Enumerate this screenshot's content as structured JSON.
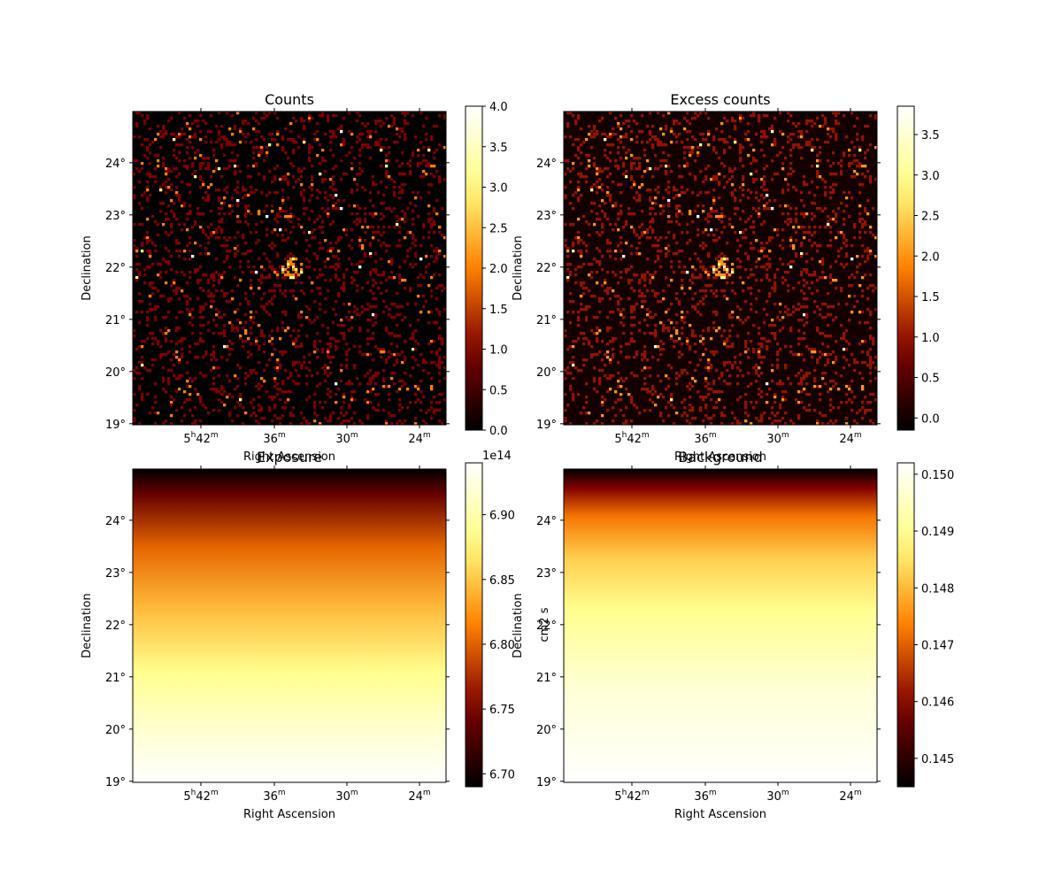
{
  "chart_data": [
    {
      "type": "heatmap",
      "title": "Counts",
      "xlabel": "Right Ascension",
      "ylabel": "Declination",
      "x_tick_labels": [
        "5h42m",
        "36m",
        "30m",
        "24m"
      ],
      "y_tick_labels": [
        "19°",
        "20°",
        "21°",
        "22°",
        "23°",
        "24°"
      ],
      "y_ticks": [
        19,
        20,
        21,
        22,
        23,
        24
      ],
      "ylim": [
        18.98,
        24.98
      ],
      "pattern": "sparse-counts",
      "source_center": {
        "ra_label_position": "36m",
        "dec": 22.0
      },
      "colorbar": {
        "min": 0.0,
        "max": 4.0,
        "ticks": [
          0.0,
          0.5,
          1.0,
          1.5,
          2.0,
          2.5,
          3.0,
          3.5,
          4.0
        ],
        "tick_labels": [
          "0.0",
          "0.5",
          "1.0",
          "1.5",
          "2.0",
          "2.5",
          "3.0",
          "3.5",
          "4.0"
        ],
        "label": "",
        "offset_text": ""
      }
    },
    {
      "type": "heatmap",
      "title": "Excess counts",
      "xlabel": "Right Ascension",
      "ylabel": "Declination",
      "x_tick_labels": [
        "5h42m",
        "36m",
        "30m",
        "24m"
      ],
      "y_tick_labels": [
        "19°",
        "20°",
        "21°",
        "22°",
        "23°",
        "24°"
      ],
      "y_ticks": [
        19,
        20,
        21,
        22,
        23,
        24
      ],
      "ylim": [
        18.98,
        24.98
      ],
      "pattern": "sparse-counts",
      "colorbar": {
        "min": -0.15,
        "max": 3.85,
        "ticks": [
          0.0,
          0.5,
          1.0,
          1.5,
          2.0,
          2.5,
          3.0,
          3.5
        ],
        "tick_labels": [
          "0.0",
          "0.5",
          "1.0",
          "1.5",
          "2.0",
          "2.5",
          "3.0",
          "3.5"
        ],
        "label": "",
        "offset_text": ""
      }
    },
    {
      "type": "heatmap",
      "title": "Exposure",
      "xlabel": "Right Ascension",
      "ylabel": "Declination",
      "x_tick_labels": [
        "5h42m",
        "36m",
        "30m",
        "24m"
      ],
      "y_tick_labels": [
        "19°",
        "20°",
        "21°",
        "22°",
        "23°",
        "24°"
      ],
      "y_ticks": [
        19,
        20,
        21,
        22,
        23,
        24
      ],
      "ylim": [
        18.98,
        24.98
      ],
      "pattern": "vertical-gradient",
      "colorbar": {
        "min": 6.69,
        "max": 6.94,
        "ticks": [
          6.7,
          6.75,
          6.8,
          6.85,
          6.9
        ],
        "tick_labels": [
          "6.70",
          "6.75",
          "6.80",
          "6.85",
          "6.90"
        ],
        "label": "cm2 s",
        "offset_text": "1e14"
      }
    },
    {
      "type": "heatmap",
      "title": "Background",
      "xlabel": "Right Ascension",
      "ylabel": "Declination",
      "x_tick_labels": [
        "5h42m",
        "36m",
        "30m",
        "24m"
      ],
      "y_tick_labels": [
        "19°",
        "20°",
        "21°",
        "22°",
        "23°",
        "24°"
      ],
      "y_ticks": [
        19,
        20,
        21,
        22,
        23,
        24
      ],
      "ylim": [
        18.98,
        24.98
      ],
      "pattern": "vertical-gradient",
      "colorbar": {
        "min": 0.1445,
        "max": 0.1502,
        "ticks": [
          0.145,
          0.146,
          0.147,
          0.148,
          0.149,
          0.15
        ],
        "tick_labels": [
          "0.145",
          "0.146",
          "0.147",
          "0.148",
          "0.149",
          "0.150"
        ],
        "label": "",
        "offset_text": ""
      }
    }
  ],
  "colormap": {
    "name": "afmhot",
    "stops": [
      "#000000",
      "#800000",
      "#ff8000",
      "#ffff80",
      "#ffffff"
    ]
  }
}
